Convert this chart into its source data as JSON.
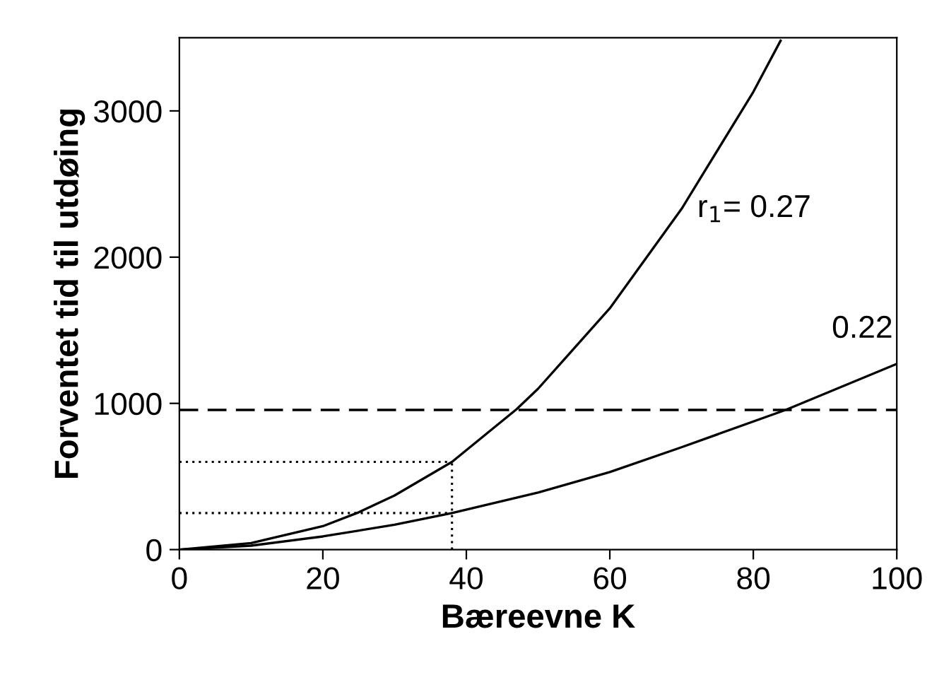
{
  "chart_data": {
    "type": "line",
    "xlabel": "Bæreevne K",
    "ylabel": "Forventet tid til utdøing",
    "xlim": [
      0,
      100
    ],
    "ylim": [
      0,
      3500
    ],
    "xticks": [
      0,
      20,
      40,
      60,
      80,
      100
    ],
    "yticks": [
      0,
      1000,
      2000,
      3000
    ],
    "grid": false,
    "legend": false,
    "marker": "none",
    "series": [
      {
        "name": "r$_{1}$= 0.27",
        "color": "#000000",
        "line_style": "solid",
        "x": [
          0,
          10,
          20,
          25,
          30,
          38,
          47,
          50,
          60,
          70,
          80,
          83.8
        ],
        "values": [
          0,
          45,
          160,
          255,
          370,
          600,
          960,
          1100,
          1650,
          2330,
          3130,
          3480
        ]
      },
      {
        "name": "0.22",
        "color": "#000000",
        "line_style": "solid",
        "x": [
          0,
          10,
          20,
          30,
          38,
          50,
          60,
          70,
          84.5,
          100
        ],
        "values": [
          0,
          27,
          90,
          170,
          250,
          390,
          530,
          700,
          955,
          1270
        ]
      },
      {
        "color": "#000000",
        "line_style": "dotted",
        "x": [
          0,
          38
        ],
        "values": [
          600,
          600
        ]
      },
      {
        "color": "#000000",
        "line_style": "dotted",
        "x": [
          0,
          38
        ],
        "values": [
          250,
          250
        ]
      },
      {
        "color": "#000000",
        "line_style": "dotted",
        "x": [
          38,
          38
        ],
        "values": [
          0,
          600
        ]
      }
    ],
    "ref_lines": [
      {
        "axis": "y",
        "value": 955,
        "color": "#000000",
        "line_style": "dashed"
      }
    ]
  }
}
